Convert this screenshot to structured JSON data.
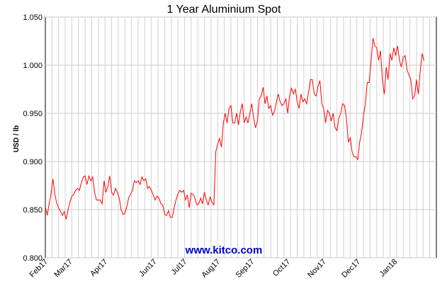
{
  "chart_data": {
    "type": "line",
    "title": "1 Year Aluminium Spot",
    "xlabel": "",
    "ylabel": "USD / lb",
    "watermark": "www.kitco.com",
    "line_color": "#ff0000",
    "grid": true,
    "ylim": [
      0.8,
      1.05
    ],
    "yticks": [
      "0.800",
      "0.850",
      "0.900",
      "0.950",
      "1.000",
      "1.050"
    ],
    "xticks": [
      {
        "label": "Feb17",
        "x": 0
      },
      {
        "label": "Mar17",
        "x": 26
      },
      {
        "label": "Apr17",
        "x": 63
      },
      {
        "label": "Jun17",
        "x": 115
      },
      {
        "label": "Jul17",
        "x": 147
      },
      {
        "label": "Aug17",
        "x": 182
      },
      {
        "label": "Sep17",
        "x": 218
      },
      {
        "label": "Oct17",
        "x": 256
      },
      {
        "label": "Nov17",
        "x": 294
      },
      {
        "label": "Dec17",
        "x": 330
      },
      {
        "label": "Jan18",
        "x": 369
      }
    ],
    "xlim": [
      0,
      413
    ],
    "series": [
      {
        "values": [
          [
            0,
            0.853
          ],
          [
            2,
            0.844
          ],
          [
            4,
            0.856
          ],
          [
            6,
            0.866
          ],
          [
            8,
            0.882
          ],
          [
            10,
            0.866
          ],
          [
            12,
            0.857
          ],
          [
            14,
            0.852
          ],
          [
            16,
            0.848
          ],
          [
            18,
            0.844
          ],
          [
            20,
            0.848
          ],
          [
            22,
            0.84
          ],
          [
            24,
            0.85
          ],
          [
            26,
            0.858
          ],
          [
            28,
            0.864
          ],
          [
            30,
            0.866
          ],
          [
            32,
            0.87
          ],
          [
            34,
            0.872
          ],
          [
            36,
            0.87
          ],
          [
            38,
            0.878
          ],
          [
            40,
            0.884
          ],
          [
            42,
            0.885
          ],
          [
            44,
            0.876
          ],
          [
            46,
            0.885
          ],
          [
            48,
            0.88
          ],
          [
            50,
            0.884
          ],
          [
            52,
            0.868
          ],
          [
            54,
            0.86
          ],
          [
            56,
            0.86
          ],
          [
            58,
            0.86
          ],
          [
            60,
            0.856
          ],
          [
            62,
            0.88
          ],
          [
            64,
            0.868
          ],
          [
            66,
            0.874
          ],
          [
            68,
            0.885
          ],
          [
            70,
            0.868
          ],
          [
            72,
            0.865
          ],
          [
            74,
            0.872
          ],
          [
            76,
            0.868
          ],
          [
            78,
            0.862
          ],
          [
            80,
            0.85
          ],
          [
            82,
            0.845
          ],
          [
            84,
            0.846
          ],
          [
            86,
            0.853
          ],
          [
            88,
            0.862
          ],
          [
            90,
            0.866
          ],
          [
            92,
            0.87
          ],
          [
            94,
            0.88
          ],
          [
            96,
            0.878
          ],
          [
            98,
            0.88
          ],
          [
            100,
            0.876
          ],
          [
            102,
            0.884
          ],
          [
            104,
            0.88
          ],
          [
            106,
            0.882
          ],
          [
            108,
            0.872
          ],
          [
            110,
            0.874
          ],
          [
            112,
            0.87
          ],
          [
            114,
            0.865
          ],
          [
            116,
            0.86
          ],
          [
            118,
            0.864
          ],
          [
            120,
            0.862
          ],
          [
            122,
            0.856
          ],
          [
            124,
            0.855
          ],
          [
            126,
            0.845
          ],
          [
            128,
            0.844
          ],
          [
            130,
            0.849
          ],
          [
            132,
            0.842
          ],
          [
            134,
            0.842
          ],
          [
            136,
            0.852
          ],
          [
            138,
            0.86
          ],
          [
            140,
            0.866
          ],
          [
            142,
            0.87
          ],
          [
            144,
            0.868
          ],
          [
            146,
            0.87
          ],
          [
            148,
            0.86
          ],
          [
            150,
            0.865
          ],
          [
            152,
            0.852
          ],
          [
            154,
            0.867
          ],
          [
            156,
            0.866
          ],
          [
            158,
            0.862
          ],
          [
            160,
            0.855
          ],
          [
            162,
            0.856
          ],
          [
            164,
            0.862
          ],
          [
            166,
            0.856
          ],
          [
            168,
            0.868
          ],
          [
            170,
            0.86
          ],
          [
            172,
            0.855
          ],
          [
            174,
            0.863
          ],
          [
            176,
            0.858
          ],
          [
            178,
            0.855
          ],
          [
            180,
            0.91
          ],
          [
            182,
            0.918
          ],
          [
            184,
            0.924
          ],
          [
            186,
            0.915
          ],
          [
            188,
            0.94
          ],
          [
            190,
            0.95
          ],
          [
            192,
            0.94
          ],
          [
            194,
            0.955
          ],
          [
            196,
            0.958
          ],
          [
            198,
            0.94
          ],
          [
            200,
            0.94
          ],
          [
            202,
            0.95
          ],
          [
            204,
            0.938
          ],
          [
            206,
            0.952
          ],
          [
            208,
            0.96
          ],
          [
            210,
            0.94
          ],
          [
            212,
            0.946
          ],
          [
            214,
            0.94
          ],
          [
            216,
            0.95
          ],
          [
            218,
            0.96
          ],
          [
            220,
            0.945
          ],
          [
            222,
            0.935
          ],
          [
            224,
            0.942
          ],
          [
            226,
            0.965
          ],
          [
            228,
            0.968
          ],
          [
            230,
            0.977
          ],
          [
            232,
            0.96
          ],
          [
            234,
            0.968
          ],
          [
            236,
            0.955
          ],
          [
            238,
            0.958
          ],
          [
            240,
            0.948
          ],
          [
            242,
            0.952
          ],
          [
            244,
            0.962
          ],
          [
            246,
            0.97
          ],
          [
            248,
            0.962
          ],
          [
            250,
            0.958
          ],
          [
            252,
            0.96
          ],
          [
            254,
            0.965
          ],
          [
            256,
            0.95
          ],
          [
            258,
            0.968
          ],
          [
            260,
            0.976
          ],
          [
            262,
            0.97
          ],
          [
            264,
            0.975
          ],
          [
            266,
            0.962
          ],
          [
            268,
            0.955
          ],
          [
            270,
            0.97
          ],
          [
            272,
            0.962
          ],
          [
            274,
            0.965
          ],
          [
            276,
            0.96
          ],
          [
            278,
            0.972
          ],
          [
            280,
            0.985
          ],
          [
            282,
            0.985
          ],
          [
            284,
            0.97
          ],
          [
            286,
            0.968
          ],
          [
            288,
            0.978
          ],
          [
            290,
            0.984
          ],
          [
            292,
            0.96
          ],
          [
            294,
            0.955
          ],
          [
            296,
            0.94
          ],
          [
            298,
            0.953
          ],
          [
            300,
            0.95
          ],
          [
            302,
            0.942
          ],
          [
            304,
            0.95
          ],
          [
            306,
            0.935
          ],
          [
            308,
            0.932
          ],
          [
            310,
            0.945
          ],
          [
            312,
            0.95
          ],
          [
            314,
            0.96
          ],
          [
            316,
            0.958
          ],
          [
            318,
            0.945
          ],
          [
            320,
            0.92
          ],
          [
            322,
            0.925
          ],
          [
            324,
            0.91
          ],
          [
            326,
            0.905
          ],
          [
            328,
            0.905
          ],
          [
            330,
            0.902
          ],
          [
            332,
            0.92
          ],
          [
            334,
            0.93
          ],
          [
            336,
            0.948
          ],
          [
            338,
            0.96
          ],
          [
            340,
            0.982
          ],
          [
            342,
            0.982
          ],
          [
            344,
            1.004
          ],
          [
            346,
            1.028
          ],
          [
            348,
            1.02
          ],
          [
            350,
            1.018
          ],
          [
            352,
            1.005
          ],
          [
            354,
            1.015
          ],
          [
            356,
            0.985
          ],
          [
            358,
            0.97
          ],
          [
            360,
            0.998
          ],
          [
            362,
            0.985
          ],
          [
            364,
            1.012
          ],
          [
            366,
            1.005
          ],
          [
            368,
            1.018
          ],
          [
            370,
            1.01
          ],
          [
            372,
            1.02
          ],
          [
            374,
            1.005
          ],
          [
            376,
            0.998
          ],
          [
            378,
            1.008
          ],
          [
            380,
            1.01
          ],
          [
            382,
            0.995
          ],
          [
            384,
            0.99
          ],
          [
            386,
            0.985
          ],
          [
            388,
            0.965
          ],
          [
            390,
            0.968
          ],
          [
            392,
            0.985
          ],
          [
            394,
            0.97
          ],
          [
            396,
            0.995
          ],
          [
            398,
            1.012
          ],
          [
            400,
            1.005
          ]
        ]
      }
    ]
  }
}
